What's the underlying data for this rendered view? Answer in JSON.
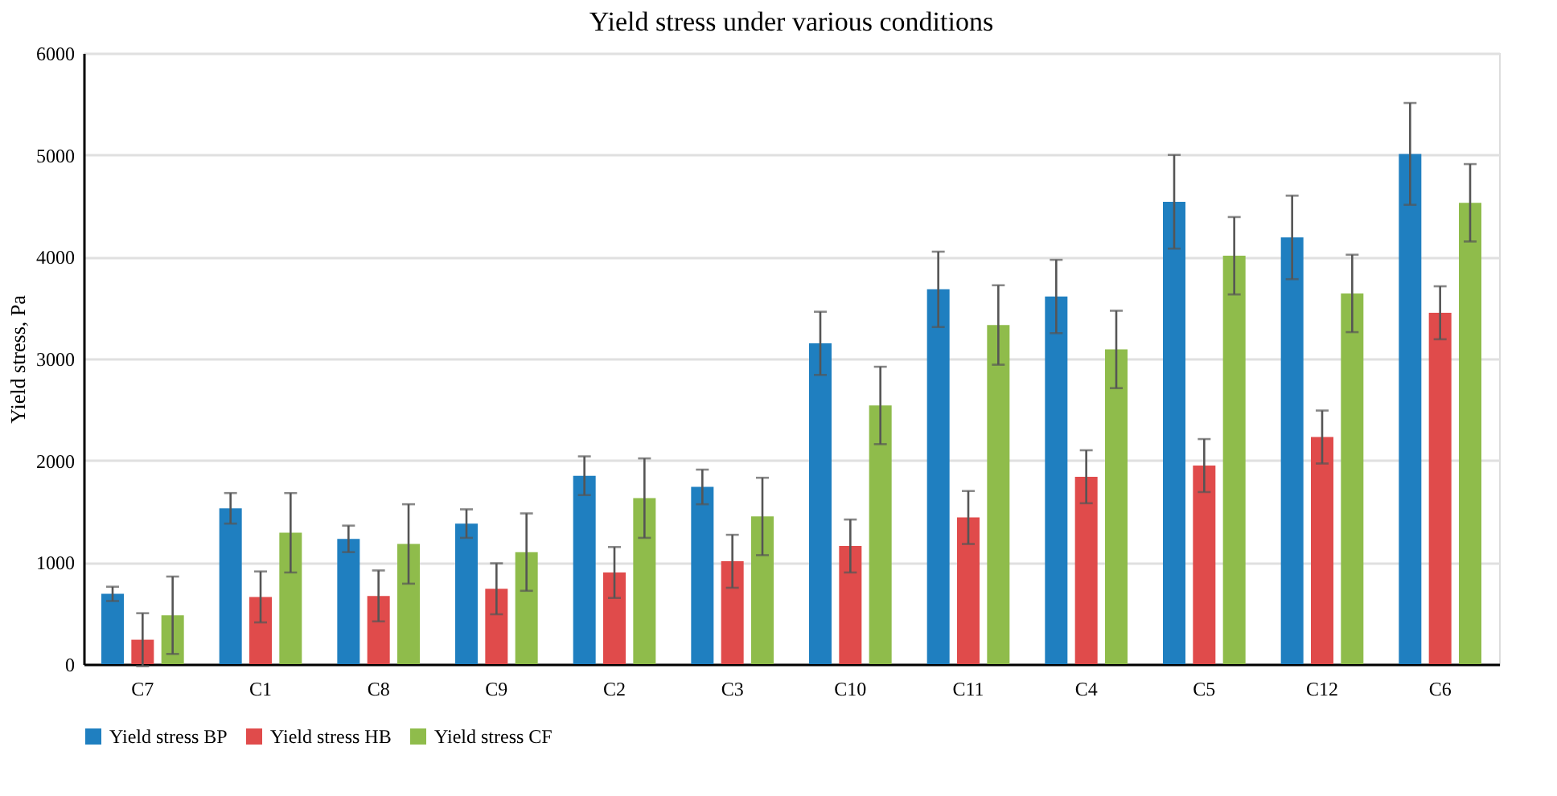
{
  "chart_data": {
    "type": "bar",
    "title": "Yield stress under various conditions",
    "ylabel": "Yield stress, Pa",
    "categories": [
      "C7",
      "C1",
      "C8",
      "C9",
      "C2",
      "C3",
      "C10",
      "C11",
      "C4",
      "C5",
      "C12",
      "C6"
    ],
    "series": [
      {
        "name": "Yield stress BP",
        "color": "#1f7fc0",
        "values": [
          690,
          1530,
          1230,
          1380,
          1850,
          1740,
          3150,
          3680,
          3610,
          4540,
          4190,
          5010
        ],
        "errors": [
          70,
          150,
          130,
          140,
          190,
          170,
          310,
          370,
          360,
          460,
          410,
          500
        ]
      },
      {
        "name": "Yield stress HB",
        "color": "#e04b4b",
        "values": [
          240,
          660,
          670,
          740,
          900,
          1010,
          1160,
          1440,
          1840,
          1950,
          2230,
          3450
        ],
        "errors": [
          260,
          250,
          250,
          250,
          250,
          260,
          260,
          260,
          260,
          260,
          260,
          260
        ]
      },
      {
        "name": "Yield stress CF",
        "color": "#8fbc4b",
        "values": [
          480,
          1290,
          1180,
          1100,
          1630,
          1450,
          2540,
          3330,
          3090,
          4010,
          3640,
          4530
        ],
        "errors": [
          380,
          390,
          390,
          380,
          390,
          380,
          380,
          390,
          380,
          380,
          380,
          380
        ]
      }
    ],
    "ylim": [
      0,
      6000
    ],
    "yticks": [
      0,
      1000,
      2000,
      3000,
      4000,
      5000,
      6000
    ],
    "grid": "y",
    "legend": "bottom"
  }
}
